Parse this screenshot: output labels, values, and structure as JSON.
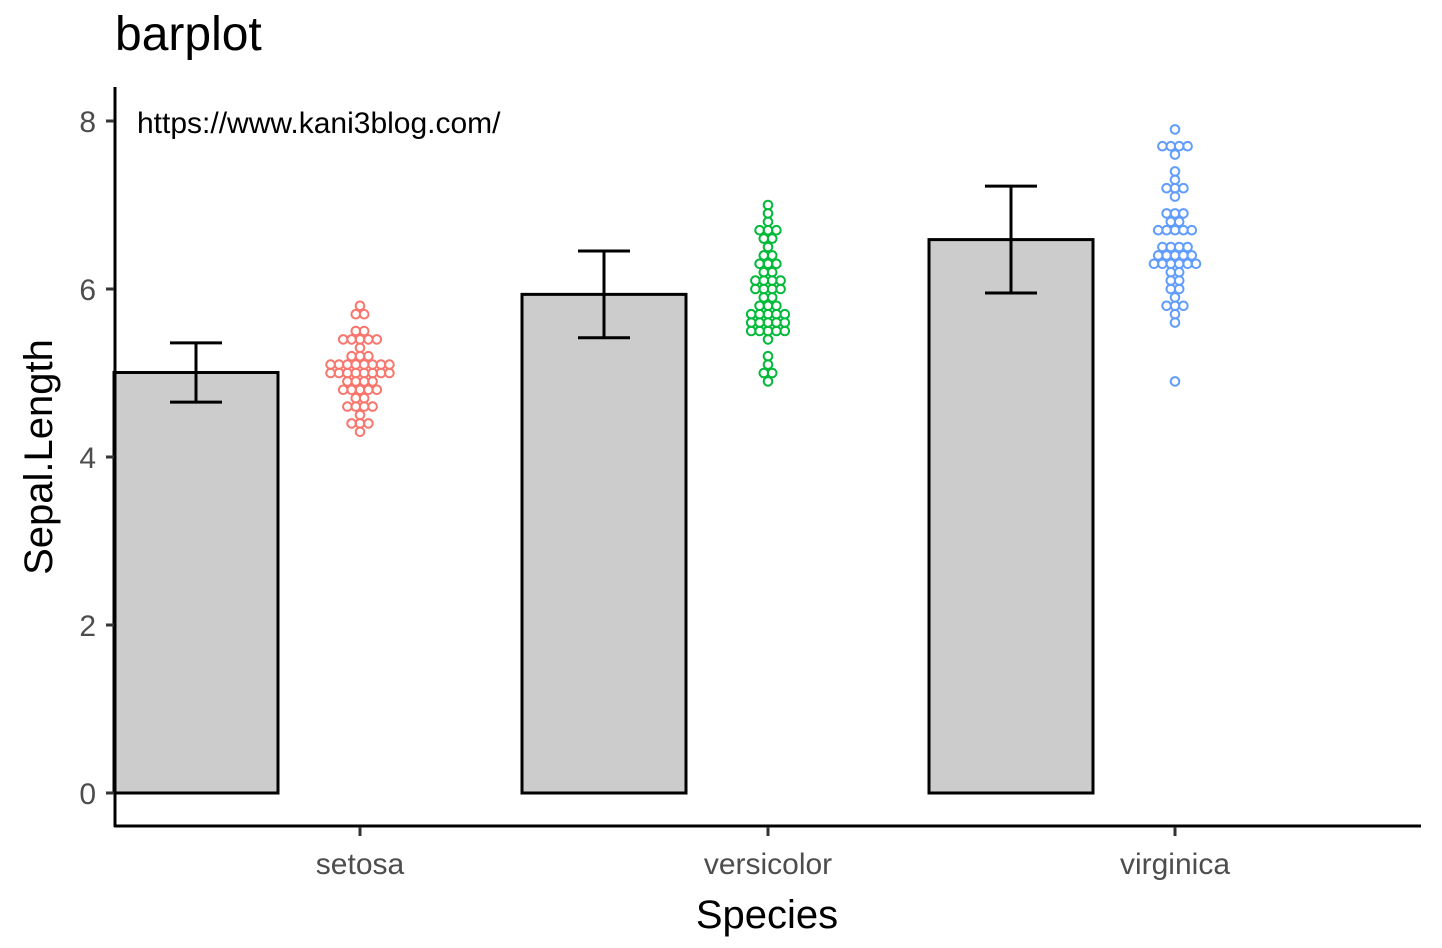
{
  "chart_data": {
    "type": "bar",
    "title": "barplot",
    "xlabel": "Species",
    "ylabel": "Sepal.Length",
    "categories": [
      "setosa",
      "versicolor",
      "virginica"
    ],
    "values": [
      5.006,
      5.936,
      6.588
    ],
    "error_bars": [
      {
        "low": 4.654,
        "high": 5.358
      },
      {
        "low": 5.42,
        "high": 6.452
      },
      {
        "low": 5.952,
        "high": 7.224
      }
    ],
    "ylim": [
      -0.4,
      8.4
    ],
    "yticks": [
      0,
      2,
      4,
      6,
      8
    ],
    "bar_fill": "#cccccc",
    "grid": false,
    "legend": "none",
    "annotation": "https://www.kani3blog.com/",
    "dot_colors": [
      "#f8766d",
      "#00ba38",
      "#619cff"
    ],
    "points": [
      [
        5.1,
        4.9,
        4.7,
        4.6,
        5.0,
        5.4,
        4.6,
        5.0,
        4.4,
        4.9,
        5.4,
        4.8,
        4.8,
        4.3,
        5.8,
        5.7,
        5.4,
        5.1,
        5.7,
        5.1,
        5.4,
        5.1,
        4.6,
        5.1,
        4.8,
        5.0,
        5.0,
        5.2,
        5.2,
        4.7,
        4.8,
        5.4,
        5.2,
        5.5,
        4.9,
        5.0,
        5.5,
        4.9,
        4.4,
        5.1,
        5.0,
        4.5,
        4.4,
        5.0,
        5.1,
        4.8,
        5.1,
        4.6,
        5.3,
        5.0
      ],
      [
        7.0,
        6.4,
        6.9,
        5.5,
        6.5,
        5.7,
        6.3,
        4.9,
        6.6,
        5.2,
        5.0,
        5.9,
        6.0,
        6.1,
        5.6,
        6.7,
        5.6,
        5.8,
        6.2,
        5.6,
        5.9,
        6.1,
        6.3,
        6.1,
        6.4,
        6.6,
        6.8,
        6.7,
        6.0,
        5.7,
        5.5,
        5.5,
        5.8,
        6.0,
        5.4,
        6.0,
        6.7,
        6.3,
        5.6,
        5.5,
        5.5,
        6.1,
        5.8,
        5.0,
        5.6,
        5.7,
        5.7,
        6.2,
        5.1,
        5.7
      ],
      [
        6.3,
        5.8,
        7.1,
        6.3,
        6.5,
        7.6,
        4.9,
        7.3,
        6.7,
        7.2,
        6.5,
        6.4,
        6.8,
        5.7,
        5.8,
        6.4,
        6.5,
        7.7,
        7.7,
        6.0,
        6.9,
        5.6,
        7.7,
        6.3,
        6.7,
        7.2,
        6.2,
        6.1,
        6.4,
        7.2,
        7.4,
        7.9,
        6.4,
        6.3,
        6.1,
        7.7,
        6.3,
        6.4,
        6.0,
        6.9,
        6.7,
        6.9,
        5.8,
        6.8,
        6.7,
        6.7,
        6.3,
        6.5,
        6.2,
        5.9
      ]
    ]
  }
}
